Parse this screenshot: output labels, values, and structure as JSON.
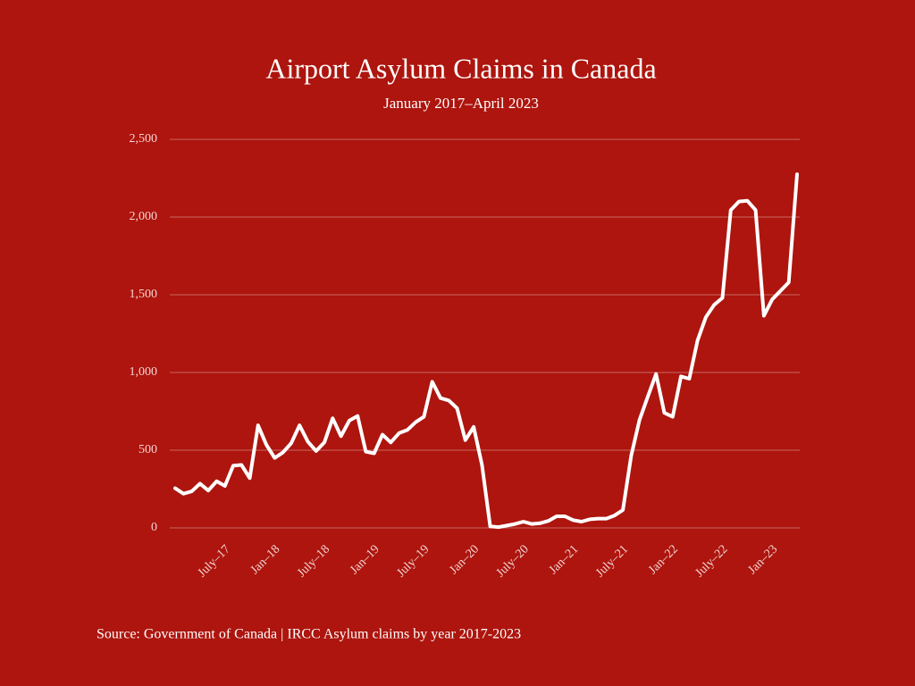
{
  "chart_data": {
    "type": "line",
    "title": "Airport Asylum Claims in Canada",
    "subtitle": "January 2017–April 2023",
    "source": "Source: Government of Canada | IRCC Asylum claims by year 2017-2023",
    "categories": [
      null,
      null,
      null,
      null,
      null,
      null,
      "July–17",
      null,
      null,
      null,
      null,
      null,
      "Jan–18",
      null,
      null,
      null,
      null,
      null,
      "July–18",
      null,
      null,
      null,
      null,
      null,
      "Jan–19",
      null,
      null,
      null,
      null,
      null,
      "July–19",
      null,
      null,
      null,
      null,
      null,
      "Jan–20",
      null,
      null,
      null,
      null,
      null,
      "July–20",
      null,
      null,
      null,
      null,
      null,
      "Jan–21",
      null,
      null,
      null,
      null,
      null,
      "July–21",
      null,
      null,
      null,
      null,
      null,
      "Jan–22",
      null,
      null,
      null,
      null,
      null,
      "July–22",
      null,
      null,
      null,
      null,
      null,
      "Jan–23",
      null,
      null,
      null
    ],
    "values": [
      255,
      220,
      235,
      285,
      240,
      300,
      270,
      400,
      405,
      320,
      660,
      535,
      450,
      485,
      545,
      660,
      555,
      495,
      550,
      705,
      590,
      690,
      720,
      490,
      480,
      600,
      550,
      610,
      630,
      680,
      715,
      940,
      835,
      820,
      770,
      565,
      650,
      405,
      10,
      5,
      15,
      25,
      40,
      25,
      30,
      45,
      75,
      75,
      50,
      40,
      55,
      60,
      60,
      80,
      115,
      465,
      695,
      845,
      990,
      740,
      715,
      975,
      960,
      1205,
      1355,
      1435,
      1480,
      2045,
      2100,
      2105,
      2045,
      1365,
      1470,
      1525,
      1580,
      2275
    ],
    "color": "#ffffff",
    "ylim": [
      0,
      2500
    ],
    "yticks": [
      0,
      {
        "value": 500,
        "label": "500"
      },
      {
        "value": 1000,
        "label": "1,000"
      },
      {
        "value": 1500,
        "label": "1,500"
      },
      {
        "value": 2000,
        "label": "2,000"
      },
      {
        "value": 2500,
        "label": "2,500"
      }
    ],
    "grid": true
  }
}
